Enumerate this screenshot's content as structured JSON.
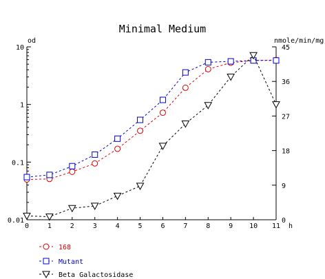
{
  "chart_data": {
    "type": "line",
    "title": "Minimal Medium",
    "xlabel": "h",
    "ylabel_left": "od",
    "ylabel_right": "nmole/min/mg",
    "x": [
      0,
      1,
      2,
      3,
      4,
      5,
      6,
      7,
      8,
      9,
      10,
      11
    ],
    "x_ticks": [
      "0",
      "1",
      "2",
      "3",
      "4",
      "5",
      "6",
      "7",
      "8",
      "9",
      "10",
      "11"
    ],
    "xlim": [
      0,
      11
    ],
    "left_axis": {
      "scale": "log",
      "ylim": [
        0.01,
        10
      ],
      "ticks": [
        0.01,
        0.1,
        1,
        10
      ],
      "tick_labels": [
        "0.01",
        "0.1",
        "1",
        "10"
      ]
    },
    "right_axis": {
      "scale": "linear",
      "ylim": [
        0,
        45
      ],
      "ticks": [
        0,
        9,
        18,
        27,
        36,
        45
      ],
      "tick_labels": [
        "0",
        "9",
        "18",
        "27",
        "36",
        "45"
      ]
    },
    "grid": false,
    "legend_position": "bottom-left",
    "series": [
      {
        "name": "168",
        "axis": "left",
        "marker": "circle",
        "color": "#dd0000",
        "values": [
          0.05,
          0.051,
          0.068,
          0.095,
          0.17,
          0.35,
          0.72,
          1.95,
          4.1,
          5.3,
          5.8,
          5.9
        ]
      },
      {
        "name": "Mutant",
        "axis": "left",
        "marker": "square",
        "color": "#0000cc",
        "values": [
          0.055,
          0.06,
          0.085,
          0.135,
          0.255,
          0.54,
          1.2,
          3.6,
          5.4,
          5.6,
          5.8,
          5.8
        ]
      },
      {
        "name": "Beta Galactosidase",
        "axis": "right",
        "marker": "triangle-down",
        "color": "#000000",
        "values": [
          1.0,
          0.8,
          3.0,
          3.6,
          6.2,
          8.8,
          19.2,
          25.0,
          29.8,
          37.2,
          42.8,
          30.0
        ]
      }
    ]
  }
}
